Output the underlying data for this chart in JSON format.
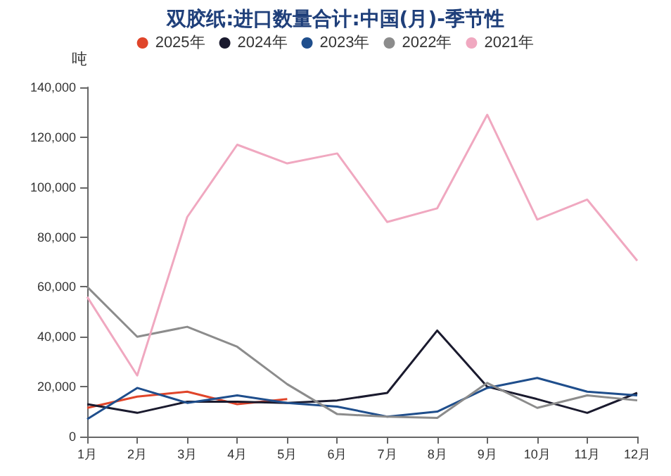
{
  "chart_data": {
    "type": "line",
    "title": "双胶纸:进口数量合计:中国(月)-季节性",
    "ylabel": "吨",
    "categories": [
      "1月",
      "2月",
      "3月",
      "4月",
      "5月",
      "6月",
      "7月",
      "8月",
      "9月",
      "10月",
      "11月",
      "12月"
    ],
    "series": [
      {
        "name": "2025年",
        "color": "#e0452a",
        "values": [
          11500,
          16000,
          18000,
          13000,
          15000,
          null,
          null,
          null,
          null,
          null,
          null,
          null
        ]
      },
      {
        "name": "2024年",
        "color": "#1a1a2e",
        "values": [
          13000,
          9500,
          14000,
          14000,
          13500,
          14500,
          17500,
          42500,
          20000,
          15000,
          9500,
          17500
        ]
      },
      {
        "name": "2023年",
        "color": "#1f4e8c",
        "values": [
          7000,
          19500,
          13500,
          16500,
          13500,
          12000,
          8000,
          10000,
          19500,
          23500,
          18000,
          16500
        ]
      },
      {
        "name": "2022年",
        "color": "#8c8c8c",
        "values": [
          60000,
          40000,
          44000,
          36000,
          21000,
          9000,
          8000,
          7500,
          21500,
          11500,
          16500,
          14500
        ]
      },
      {
        "name": "2021年",
        "color": "#f0a8c0",
        "values": [
          56000,
          24500,
          88000,
          117000,
          109500,
          113500,
          86000,
          91500,
          129000,
          87000,
          95000,
          70500
        ]
      }
    ],
    "ylim": [
      0,
      140000
    ],
    "yticks": [
      0,
      {
        "value": 20000,
        "label": "20,000"
      },
      {
        "value": 40000,
        "label": "40,000"
      },
      {
        "value": 60000,
        "label": "60,000"
      },
      {
        "value": 80000,
        "label": "80,000"
      },
      {
        "value": 100000,
        "label": "100,000"
      },
      {
        "value": 120000,
        "label": "120,000"
      },
      {
        "value": 140000,
        "label": "140,000"
      }
    ],
    "grid": false,
    "legend": "top",
    "marker": "none",
    "line_style": "solid"
  }
}
